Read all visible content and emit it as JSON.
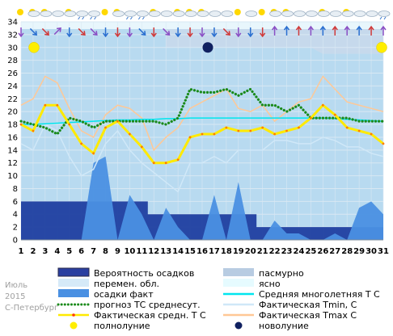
{
  "chart_data": {
    "type": "line",
    "x": [
      1,
      2,
      3,
      4,
      5,
      6,
      7,
      8,
      9,
      10,
      11,
      12,
      13,
      14,
      15,
      16,
      17,
      18,
      19,
      20,
      21,
      22,
      23,
      24,
      25,
      26,
      27,
      28,
      29,
      30,
      31
    ],
    "ylim": [
      0,
      34
    ],
    "y_ticks": [
      0,
      2,
      4,
      6,
      8,
      10,
      12,
      14,
      16,
      18,
      20,
      22,
      24,
      26,
      28,
      30,
      32,
      34
    ],
    "grid": true,
    "sky": {
      "clear_top_to_day": 8,
      "overcast_segment": [
        13,
        25
      ]
    },
    "series": [
      {
        "name": "Вероятность осадков",
        "color": "#1f3fa0",
        "values": [
          6,
          6,
          6,
          6,
          6,
          6,
          6,
          6,
          6,
          6,
          6,
          4,
          4,
          4,
          4,
          4,
          4,
          4,
          4,
          4,
          2,
          2,
          2,
          2,
          2,
          2,
          2,
          2,
          2,
          2,
          2
        ]
      },
      {
        "name": "осадки факт",
        "color": "#4a90e2",
        "values": [
          0,
          0,
          0,
          0,
          0,
          0,
          12,
          13,
          0,
          7,
          4,
          0,
          5,
          2,
          0,
          0,
          7,
          0,
          9,
          0,
          0,
          3,
          1,
          1,
          0,
          0,
          1,
          0,
          5,
          6,
          4
        ]
      },
      {
        "name": "Средняя многолетняя Т С",
        "color": "#00e5ee",
        "values": [
          18,
          18,
          18.1,
          18.2,
          18.3,
          18.4,
          18.5,
          18.6,
          18.7,
          18.7,
          18.8,
          18.8,
          18.9,
          18.9,
          19,
          19,
          19,
          19,
          19,
          19,
          19,
          19,
          19,
          19,
          19,
          19,
          18.9,
          18.8,
          18.7,
          18.6,
          18.5
        ]
      },
      {
        "name": "прогноз ТС среднесут.",
        "color": "#1a8a1a",
        "values": [
          18.5,
          18,
          17.5,
          16.5,
          19,
          18.5,
          17.5,
          18.5,
          18.5,
          18.5,
          18.5,
          18.5,
          18,
          19,
          23.5,
          23,
          23,
          23.5,
          22.5,
          23.5,
          21,
          21,
          20,
          21,
          19,
          19,
          19,
          19,
          18.5,
          18.5,
          18.5
        ]
      },
      {
        "name": "Фактическая средн. Т С",
        "color": "#ffea00",
        "values": [
          18,
          17,
          21,
          21,
          18,
          15,
          13.5,
          17.5,
          18.5,
          16.5,
          14.5,
          12,
          12,
          12.5,
          16,
          16.5,
          16.5,
          17.5,
          17,
          17,
          17.5,
          16.5,
          17,
          17.5,
          19,
          21,
          19.5,
          17.5,
          17,
          16.5,
          15
        ]
      },
      {
        "name": "Фактическая Tmin, C",
        "color": "#d0e8f8",
        "values": [
          15,
          14,
          18,
          17,
          13,
          10,
          11,
          15,
          17,
          14,
          12,
          10.5,
          9,
          7.5,
          12,
          12,
          13,
          12,
          14,
          14,
          14,
          15.5,
          15.5,
          15,
          15,
          16,
          15.5,
          14.5,
          14.5,
          13.5,
          13
        ]
      },
      {
        "name": "Фактическая Tmax C",
        "color": "#ffc896",
        "values": [
          21,
          22,
          25.5,
          24.5,
          20.5,
          17,
          16,
          19.5,
          21,
          20.5,
          19,
          14,
          16,
          17.5,
          20.5,
          21.5,
          22.5,
          23.5,
          20.5,
          20,
          21,
          18.5,
          20,
          21.5,
          22,
          25.5,
          23.5,
          21.5,
          21,
          20.5,
          20
        ]
      }
    ],
    "legend": [
      {
        "label": "Вероятность осадков",
        "swatch": "box",
        "color": "#2a3fa0"
      },
      {
        "label": "пасмурно",
        "swatch": "box",
        "color": "#b8cce2"
      },
      {
        "label": "перемен. обл.",
        "swatch": "box",
        "color": "#d6eaf8"
      },
      {
        "label": "ясно",
        "swatch": "box",
        "color": "#e6fbff"
      },
      {
        "label": "осадки факт",
        "swatch": "box",
        "color": "#4a90e2"
      },
      {
        "label": "Средняя многолетняя Т С",
        "swatch": "line",
        "color": "#00e5ee"
      },
      {
        "label": "прогноз ТС среднесут.",
        "swatch": "dotted",
        "color": "#1a8a1a"
      },
      {
        "label": "Фактическая Tmin, C",
        "swatch": "line",
        "color": "#d0e8f8"
      },
      {
        "label": "Фактическая средн. Т С",
        "swatch": "line",
        "color": "#ffea00"
      },
      {
        "label": "Фактическая Tmax C",
        "swatch": "line",
        "color": "#ffc896"
      },
      {
        "label": "полнолуние",
        "swatch": "circle",
        "color": "#ffee00"
      },
      {
        "label": "новолуние",
        "swatch": "circle",
        "color": "#102060"
      }
    ],
    "moon": {
      "full": [
        1,
        31
      ],
      "new": [
        16
      ]
    },
    "side_notes": [
      "Июль",
      "2015",
      "С-Петербург"
    ],
    "weather_icons": [
      "sun",
      "sun-cloud",
      "sun-cloud",
      "cloud",
      "sun-cloud",
      "rain-cloud",
      "rain-cloud",
      "sun",
      "sun-cloud",
      "rain-cloud",
      "rain-cloud",
      "sun-cloud",
      "cloud",
      "sun-cloud",
      "sun-cloud",
      "sun-cloud",
      "cloud",
      "cloud",
      "sun",
      "cloud",
      "sun",
      "sun-cloud",
      "sun-cloud",
      "cloud",
      "cloud",
      "sun-cloud",
      "cloud",
      "sun-cloud",
      "cloud",
      "cloud",
      "rain-cloud"
    ],
    "wind_icons": [
      "down",
      "down-right",
      "down-right",
      "up-right",
      "down",
      "down-right",
      "down-right",
      "down",
      "down",
      "down",
      "down-right",
      "down",
      "down-right",
      "down",
      "down",
      "down",
      "down",
      "down-right",
      "down",
      "down",
      "down",
      "up",
      "up",
      "up",
      "up",
      "up",
      "up",
      "up",
      "up",
      "up",
      "up"
    ]
  }
}
